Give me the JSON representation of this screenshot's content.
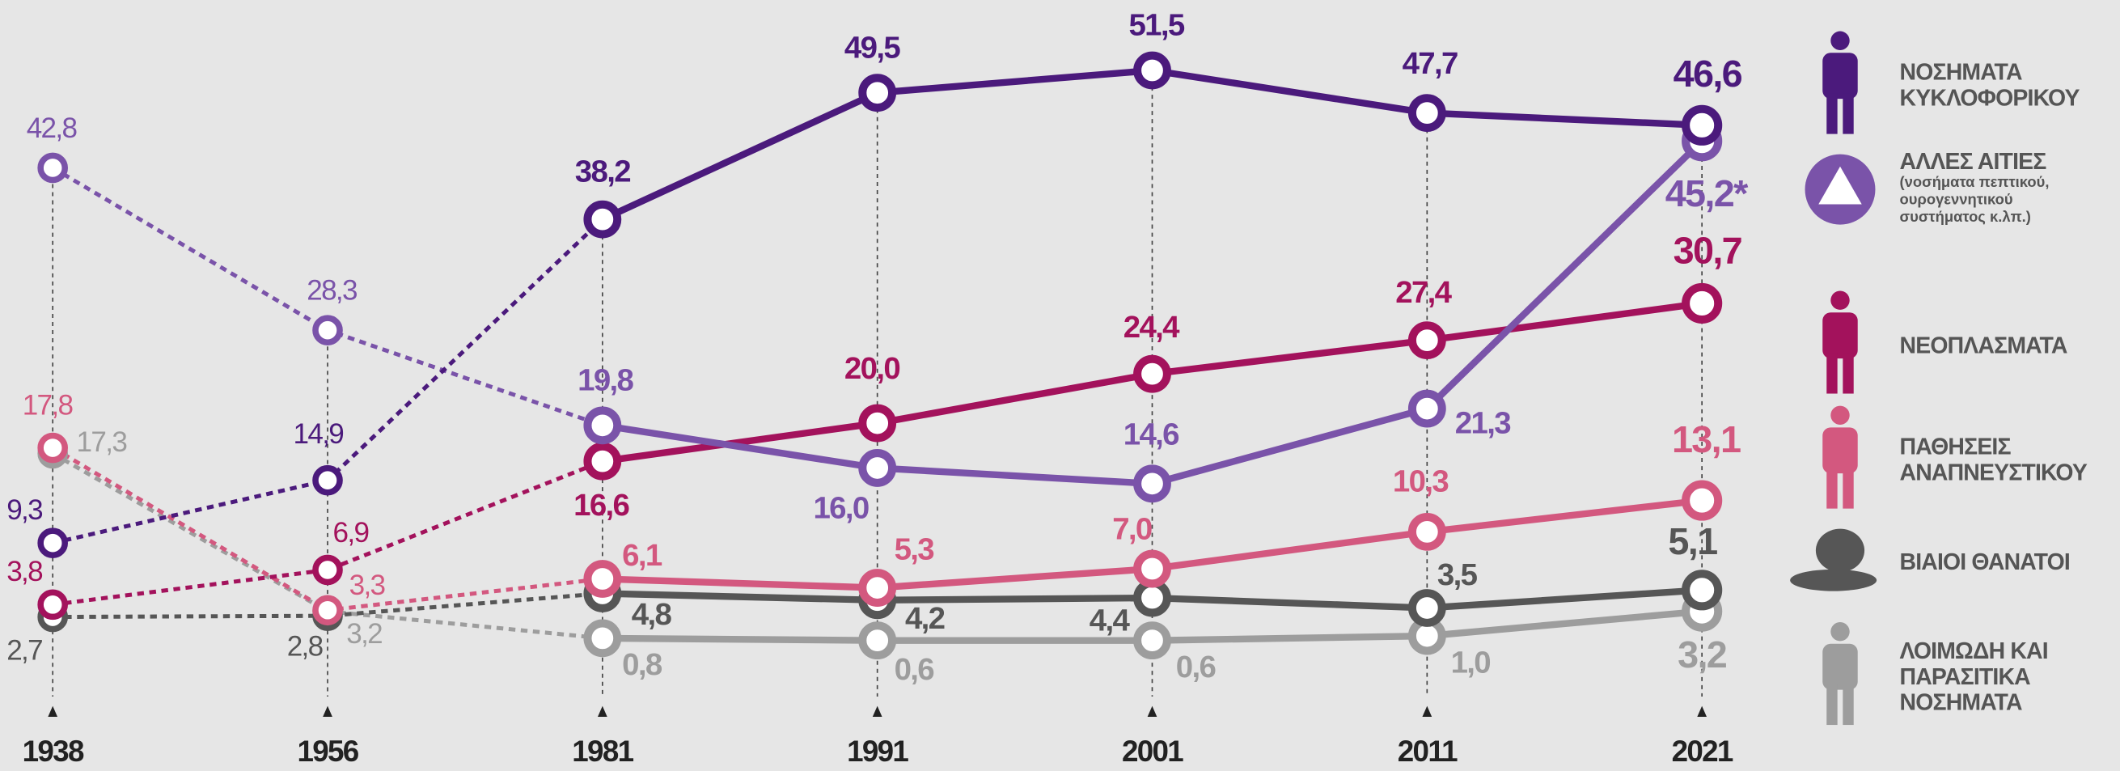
{
  "chart_data": {
    "type": "line",
    "categories": [
      "1938",
      "1956",
      "1981",
      "1991",
      "2001",
      "2011",
      "2021"
    ],
    "ylim": [
      0,
      55
    ],
    "series": [
      {
        "name": "ΝΟΣΗΜΑΤΑ ΚΥΚΛΟΦΟΡΙΚΟΥ",
        "color": "#4b1a7c",
        "values": [
          9.3,
          14.9,
          38.2,
          49.5,
          51.5,
          47.7,
          46.6
        ],
        "value_labels": [
          "9,3",
          "14,9",
          "38,2",
          "49,5",
          "51,5",
          "47,7",
          "46,6"
        ]
      },
      {
        "name": "ΑΛΛΕΣ ΑΙΤΙΕΣ",
        "note": "(νοσήματα πεπτικού, ουρογεννητικού συστήματος κ.λπ.)",
        "color": "#7a53a9",
        "values": [
          42.8,
          28.3,
          19.8,
          16.0,
          14.6,
          21.3,
          45.2
        ],
        "value_labels": [
          "42,8",
          "28,3",
          "19,8",
          "16,0",
          "14,6",
          "21,3",
          "45,2*"
        ]
      },
      {
        "name": "ΝΕΟΠΛΑΣΜΑΤΑ",
        "color": "#a3125c",
        "values": [
          3.8,
          6.9,
          16.6,
          20.0,
          24.4,
          27.4,
          30.7
        ],
        "value_labels": [
          "3,8",
          "6,9",
          "16,6",
          "20,0",
          "24,4",
          "27,4",
          "30,7"
        ]
      },
      {
        "name": "ΠΑΘΗΣΕΙΣ ΑΝΑΠΝΕΥΣΤΙΚΟΥ",
        "color": "#d3587f",
        "values": [
          17.8,
          3.3,
          6.1,
          5.3,
          7.0,
          10.3,
          13.1
        ],
        "value_labels": [
          "17,8",
          "3,3",
          "6,1",
          "5,3",
          "7,0",
          "10,3",
          "13,1"
        ]
      },
      {
        "name": "ΒΙΑΙΟΙ ΘΑΝΑΤΟΙ",
        "color": "#565656",
        "values": [
          2.7,
          2.8,
          4.8,
          4.2,
          4.4,
          3.5,
          5.1
        ],
        "value_labels": [
          "2,7",
          "2,8",
          "4,8",
          "4,2",
          "4,4",
          "3,5",
          "5,1"
        ]
      },
      {
        "name": "ΛΟΙΜΩΔΗ ΚΑΙ ΠΑΡΑΣΙΤΙΚΑ ΝΟΣΗΜΑΤΑ",
        "color": "#9d9d9d",
        "values": [
          17.3,
          3.2,
          0.8,
          0.6,
          0.6,
          1.0,
          3.2
        ],
        "value_labels": [
          "17,3",
          "3,2",
          "0,8",
          "0,6",
          "0,6",
          "1,0",
          "3,2"
        ]
      }
    ]
  }
}
